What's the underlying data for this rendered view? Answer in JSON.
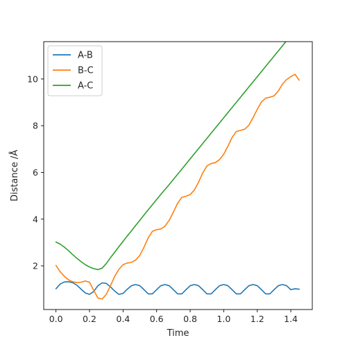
{
  "chart_data": {
    "type": "line",
    "title": "",
    "xlabel": "Time",
    "ylabel": "Distance /Å",
    "xlim": [
      -0.073,
      1.528
    ],
    "ylim": [
      0.13,
      11.6
    ],
    "xticks": [
      0.0,
      0.2,
      0.4,
      0.6,
      0.8,
      1.0,
      1.2,
      1.4
    ],
    "xtick_labels": [
      "0.0",
      "0.2",
      "0.4",
      "0.6",
      "0.8",
      "1.0",
      "1.2",
      "1.4"
    ],
    "yticks": [
      2,
      4,
      6,
      8,
      10
    ],
    "ytick_labels": [
      "2",
      "4",
      "6",
      "8",
      "10"
    ],
    "grid": false,
    "legend": "top-left",
    "series": [
      {
        "name": "A-B",
        "color": "#1f77b4",
        "x": [
          0.0,
          0.025,
          0.05,
          0.075,
          0.1,
          0.125,
          0.15,
          0.175,
          0.2,
          0.225,
          0.25,
          0.275,
          0.3,
          0.325,
          0.35,
          0.375,
          0.4,
          0.425,
          0.45,
          0.475,
          0.5,
          0.525,
          0.55,
          0.575,
          0.6,
          0.625,
          0.65,
          0.675,
          0.7,
          0.725,
          0.75,
          0.775,
          0.8,
          0.825,
          0.85,
          0.875,
          0.9,
          0.925,
          0.95,
          0.975,
          1.0,
          1.025,
          1.05,
          1.075,
          1.1,
          1.125,
          1.15,
          1.175,
          1.2,
          1.225,
          1.25,
          1.275,
          1.3,
          1.325,
          1.35,
          1.375,
          1.4,
          1.425,
          1.45
        ],
        "y": [
          1.02,
          1.22,
          1.31,
          1.32,
          1.28,
          1.17,
          1.0,
          0.84,
          0.78,
          0.9,
          1.15,
          1.27,
          1.25,
          1.1,
          0.92,
          0.78,
          0.82,
          1.0,
          1.15,
          1.2,
          1.15,
          0.98,
          0.8,
          0.8,
          0.98,
          1.15,
          1.2,
          1.15,
          0.98,
          0.8,
          0.8,
          0.98,
          1.15,
          1.2,
          1.15,
          0.98,
          0.8,
          0.8,
          0.98,
          1.15,
          1.2,
          1.15,
          0.98,
          0.8,
          0.8,
          0.98,
          1.15,
          1.2,
          1.15,
          0.98,
          0.8,
          0.8,
          0.98,
          1.15,
          1.2,
          1.15,
          0.98,
          1.02,
          1.0
        ]
      },
      {
        "name": "B-C",
        "color": "#ff7f0e",
        "x": [
          0.0,
          0.025,
          0.05,
          0.075,
          0.1,
          0.125,
          0.15,
          0.175,
          0.2,
          0.225,
          0.25,
          0.275,
          0.3,
          0.325,
          0.35,
          0.375,
          0.4,
          0.425,
          0.45,
          0.475,
          0.5,
          0.525,
          0.55,
          0.575,
          0.6,
          0.625,
          0.65,
          0.675,
          0.7,
          0.725,
          0.75,
          0.775,
          0.8,
          0.825,
          0.85,
          0.875,
          0.9,
          0.925,
          0.95,
          0.975,
          1.0,
          1.025,
          1.05,
          1.075,
          1.1,
          1.125,
          1.15,
          1.175,
          1.2,
          1.225,
          1.25,
          1.275,
          1.3,
          1.325,
          1.35,
          1.375,
          1.4,
          1.425,
          1.45
        ],
        "y": [
          2.02,
          1.75,
          1.55,
          1.4,
          1.32,
          1.28,
          1.3,
          1.35,
          1.3,
          0.95,
          0.62,
          0.58,
          0.78,
          1.15,
          1.55,
          1.85,
          2.05,
          2.12,
          2.15,
          2.25,
          2.45,
          2.8,
          3.2,
          3.48,
          3.55,
          3.58,
          3.7,
          3.95,
          4.3,
          4.68,
          4.93,
          4.98,
          5.05,
          5.25,
          5.58,
          5.98,
          6.28,
          6.38,
          6.42,
          6.55,
          6.78,
          7.12,
          7.5,
          7.75,
          7.8,
          7.85,
          8.02,
          8.35,
          8.7,
          9.02,
          9.18,
          9.22,
          9.28,
          9.48,
          9.78,
          9.98,
          10.1,
          10.2,
          9.95
        ]
      },
      {
        "name": "A-C",
        "color": "#2ca02c",
        "x": [
          0.0,
          0.025,
          0.05,
          0.075,
          0.1,
          0.125,
          0.15,
          0.175,
          0.2,
          0.225,
          0.25,
          0.275,
          0.3,
          0.325,
          0.35,
          0.375,
          0.4,
          0.425,
          0.45,
          0.475,
          0.5,
          0.525,
          0.55,
          0.575,
          0.6,
          0.625,
          0.65,
          0.675,
          0.7,
          0.725,
          0.75,
          0.775,
          0.8,
          0.825,
          0.85,
          0.875,
          0.9,
          0.925,
          0.95,
          0.975,
          1.0,
          1.025,
          1.05,
          1.075,
          1.1,
          1.125,
          1.15,
          1.175,
          1.2,
          1.225,
          1.25,
          1.275,
          1.3,
          1.325,
          1.35,
          1.375,
          1.4,
          1.425,
          1.45
        ],
        "y": [
          3.02,
          2.93,
          2.8,
          2.65,
          2.48,
          2.32,
          2.18,
          2.05,
          1.95,
          1.88,
          1.84,
          1.9,
          2.1,
          2.35,
          2.58,
          2.82,
          3.05,
          3.28,
          3.5,
          3.73,
          3.95,
          4.18,
          4.4,
          4.62,
          4.84,
          5.06,
          5.27,
          5.48,
          5.7,
          5.92,
          6.14,
          6.36,
          6.58,
          6.8,
          7.02,
          7.24,
          7.46,
          7.68,
          7.9,
          8.12,
          8.34,
          8.56,
          8.78,
          9.0,
          9.22,
          9.44,
          9.66,
          9.88,
          10.1,
          10.32,
          10.54,
          10.76,
          10.98,
          11.2,
          11.42,
          11.64,
          11.86,
          12.08,
          12.3
        ]
      }
    ]
  }
}
